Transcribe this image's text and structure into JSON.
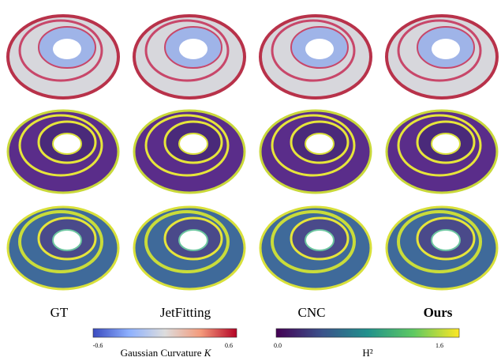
{
  "columns": [
    "GT",
    "JetFitting",
    "CNC",
    "Ours"
  ],
  "colorbars": [
    {
      "label": "Gaussian Curvature",
      "symbol": "K",
      "min_label": "-0.6",
      "max_label": "0.6"
    },
    {
      "label": "H²",
      "min_label": "0.0",
      "max_label": "1.6"
    }
  ]
}
